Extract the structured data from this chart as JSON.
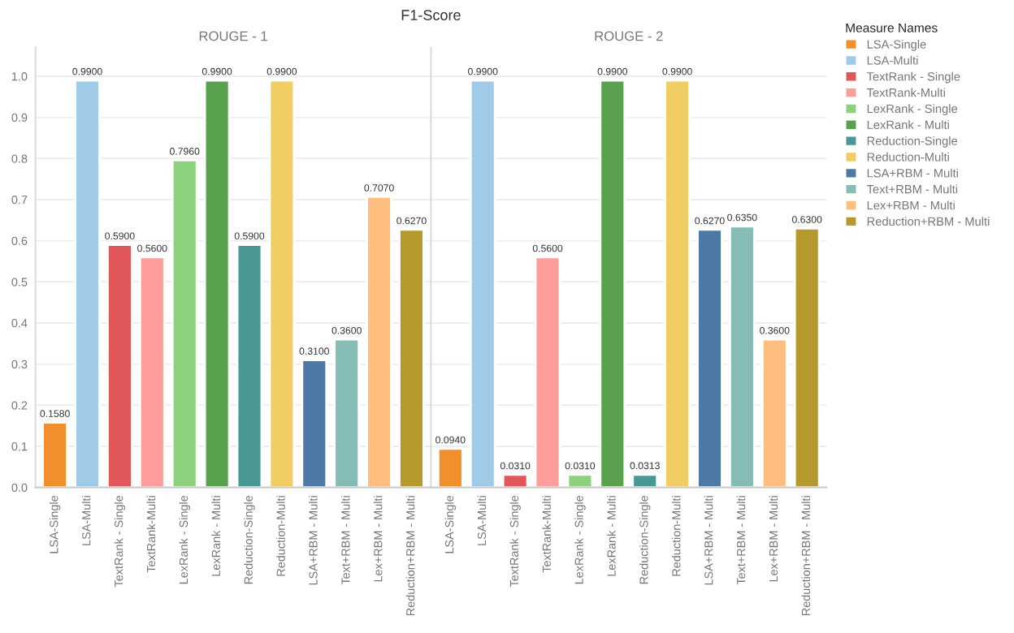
{
  "chart_data": [
    {
      "type": "bar",
      "title": "F1-Score",
      "subtitle": "ROUGE - 1",
      "categories": [
        "LSA-Single",
        "LSA-Multi",
        "TextRank - Single",
        "TextRank-Multi",
        "LexRank - Single",
        "LexRank - Multi",
        "Reduction-Single",
        "Reduction-Multi",
        "LSA+RBM - Multi",
        "Text+RBM - Multi",
        "Lex+RBM - Multi",
        "Reduction+RBM - Multi"
      ],
      "series": [
        {
          "color": "#f28e2b",
          "values": [
            0.158,
            null,
            null,
            null,
            null,
            null,
            null,
            null,
            null,
            null,
            null,
            null
          ],
          "value_labels": [
            "0.1580",
            null,
            null,
            null,
            null,
            null,
            null,
            null,
            null,
            null,
            null,
            null
          ]
        },
        {
          "color": "#a0cbe8",
          "values": [
            null,
            0.99,
            null,
            null,
            null,
            null,
            null,
            null,
            null,
            null,
            null,
            null
          ],
          "value_labels": [
            null,
            "0.9900",
            null,
            null,
            null,
            null,
            null,
            null,
            null,
            null,
            null,
            null
          ]
        },
        {
          "color": "#e15759",
          "values": [
            null,
            null,
            0.59,
            null,
            null,
            null,
            null,
            null,
            null,
            null,
            null,
            null
          ],
          "value_labels": [
            null,
            null,
            "0.5900",
            null,
            null,
            null,
            null,
            null,
            null,
            null,
            null,
            null
          ]
        },
        {
          "color": "#ff9d9a",
          "values": [
            null,
            null,
            null,
            0.56,
            null,
            null,
            null,
            null,
            null,
            null,
            null,
            null
          ],
          "value_labels": [
            null,
            null,
            null,
            "0.5600",
            null,
            null,
            null,
            null,
            null,
            null,
            null,
            null
          ]
        },
        {
          "color": "#8cd17d",
          "values": [
            null,
            null,
            null,
            null,
            0.796,
            null,
            null,
            null,
            null,
            null,
            null,
            null
          ],
          "value_labels": [
            null,
            null,
            null,
            null,
            "0.7960",
            null,
            null,
            null,
            null,
            null,
            null,
            null
          ]
        },
        {
          "color": "#59a14f",
          "values": [
            null,
            null,
            null,
            null,
            null,
            0.99,
            null,
            null,
            null,
            null,
            null,
            null
          ],
          "value_labels": [
            null,
            null,
            null,
            null,
            null,
            "0.9900",
            null,
            null,
            null,
            null,
            null,
            null
          ]
        },
        {
          "color": "#499894",
          "values": [
            null,
            null,
            null,
            null,
            null,
            null,
            0.59,
            null,
            null,
            null,
            null,
            null
          ],
          "value_labels": [
            null,
            null,
            null,
            null,
            null,
            null,
            "0.5900",
            null,
            null,
            null,
            null,
            null
          ]
        },
        {
          "color": "#f1ce63",
          "values": [
            null,
            null,
            null,
            null,
            null,
            null,
            null,
            0.99,
            null,
            null,
            null,
            null
          ],
          "value_labels": [
            null,
            null,
            null,
            null,
            null,
            null,
            null,
            "0.9900",
            null,
            null,
            null,
            null
          ]
        },
        {
          "color": "#4e79a7",
          "values": [
            null,
            null,
            null,
            null,
            null,
            null,
            null,
            null,
            0.31,
            null,
            null,
            null
          ],
          "value_labels": [
            null,
            null,
            null,
            null,
            null,
            null,
            null,
            null,
            "0.3100",
            null,
            null,
            null
          ]
        },
        {
          "color": "#86bcb6",
          "values": [
            null,
            null,
            null,
            null,
            null,
            null,
            null,
            null,
            null,
            0.36,
            null,
            null
          ],
          "value_labels": [
            null,
            null,
            null,
            null,
            null,
            null,
            null,
            null,
            null,
            "0.3600",
            null,
            null
          ]
        },
        {
          "color": "#ffbe7d",
          "values": [
            null,
            null,
            null,
            null,
            null,
            null,
            null,
            null,
            null,
            null,
            0.707,
            null
          ],
          "value_labels": [
            null,
            null,
            null,
            null,
            null,
            null,
            null,
            null,
            null,
            null,
            "0.7070",
            null
          ]
        },
        {
          "color": "#b6992d",
          "values": [
            null,
            null,
            null,
            null,
            null,
            null,
            null,
            null,
            null,
            null,
            null,
            0.627
          ],
          "value_labels": [
            null,
            null,
            null,
            null,
            null,
            null,
            null,
            null,
            null,
            null,
            null,
            "0.6270"
          ]
        }
      ],
      "ylim": [
        0,
        1.07
      ],
      "yticks": [
        {
          "value": 0,
          "label": "0.0"
        },
        0.1,
        0.2,
        0.3,
        0.4,
        0.5,
        0.6,
        0.7,
        0.8,
        0.9,
        {
          "value": 1,
          "label": "1.0"
        }
      ],
      "grid": "y"
    },
    {
      "type": "bar",
      "subtitle": "ROUGE - 2",
      "categories": [
        "LSA-Single",
        "LSA-Multi",
        "TextRank - Single",
        "TextRank-Multi",
        "LexRank - Single",
        "LexRank - Multi",
        "Reduction-Single",
        "Reduction-Multi",
        "LSA+RBM - Multi",
        "Text+RBM - Multi",
        "Lex+RBM - Multi",
        "Reduction+RBM - Multi"
      ],
      "series": [
        {
          "name": "LSA-Single",
          "color": "#f28e2b",
          "values": [
            0.094,
            null,
            null,
            null,
            null,
            null,
            null,
            null,
            null,
            null,
            null,
            null
          ],
          "value_labels": [
            "0.0940",
            null,
            null,
            null,
            null,
            null,
            null,
            null,
            null,
            null,
            null,
            null
          ]
        },
        {
          "name": "LSA-Multi",
          "color": "#a0cbe8",
          "values": [
            null,
            0.99,
            null,
            null,
            null,
            null,
            null,
            null,
            null,
            null,
            null,
            null
          ],
          "value_labels": [
            null,
            "0.9900",
            null,
            null,
            null,
            null,
            null,
            null,
            null,
            null,
            null,
            null
          ]
        },
        {
          "name": "TextRank - Single",
          "color": "#e15759",
          "values": [
            null,
            null,
            0.031,
            null,
            null,
            null,
            null,
            null,
            null,
            null,
            null,
            null
          ],
          "value_labels": [
            null,
            null,
            "0.0310",
            null,
            null,
            null,
            null,
            null,
            null,
            null,
            null,
            null
          ]
        },
        {
          "name": "TextRank-Multi",
          "color": "#ff9d9a",
          "values": [
            null,
            null,
            null,
            0.56,
            null,
            null,
            null,
            null,
            null,
            null,
            null,
            null
          ],
          "value_labels": [
            null,
            null,
            null,
            "0.5600",
            null,
            null,
            null,
            null,
            null,
            null,
            null,
            null
          ]
        },
        {
          "name": "LexRank - Single",
          "color": "#8cd17d",
          "values": [
            null,
            null,
            null,
            null,
            0.031,
            null,
            null,
            null,
            null,
            null,
            null,
            null
          ],
          "value_labels": [
            null,
            null,
            null,
            null,
            "0.0310",
            null,
            null,
            null,
            null,
            null,
            null,
            null
          ]
        },
        {
          "name": "LexRank - Multi",
          "color": "#59a14f",
          "values": [
            null,
            null,
            null,
            null,
            null,
            0.99,
            null,
            null,
            null,
            null,
            null,
            null
          ],
          "value_labels": [
            null,
            null,
            null,
            null,
            null,
            "0.9900",
            null,
            null,
            null,
            null,
            null,
            null
          ]
        },
        {
          "name": "Reduction-Single",
          "color": "#499894",
          "values": [
            null,
            null,
            null,
            null,
            null,
            null,
            0.0313,
            null,
            null,
            null,
            null,
            null
          ],
          "value_labels": [
            null,
            null,
            null,
            null,
            null,
            null,
            "0.0313",
            null,
            null,
            null,
            null,
            null
          ]
        },
        {
          "name": "Reduction-Multi",
          "color": "#f1ce63",
          "values": [
            null,
            null,
            null,
            null,
            null,
            null,
            null,
            0.99,
            null,
            null,
            null,
            null
          ],
          "value_labels": [
            null,
            null,
            null,
            null,
            null,
            null,
            null,
            "0.9900",
            null,
            null,
            null,
            null
          ]
        },
        {
          "name": "LSA+RBM - Multi",
          "color": "#4e79a7",
          "values": [
            null,
            null,
            null,
            null,
            null,
            null,
            null,
            null,
            0.627,
            null,
            null,
            null
          ],
          "value_labels": [
            null,
            null,
            null,
            null,
            null,
            null,
            null,
            null,
            "0.6270",
            null,
            null,
            null
          ]
        },
        {
          "name": "Text+RBM - Multi",
          "color": "#86bcb6",
          "values": [
            null,
            null,
            null,
            null,
            null,
            null,
            null,
            null,
            null,
            0.635,
            null,
            null
          ],
          "value_labels": [
            null,
            null,
            null,
            null,
            null,
            null,
            null,
            null,
            null,
            "0.6350",
            null,
            null
          ]
        },
        {
          "name": "Lex+RBM - Multi",
          "color": "#ffbe7d",
          "values": [
            null,
            null,
            null,
            null,
            null,
            null,
            null,
            null,
            null,
            null,
            0.36,
            null
          ],
          "value_labels": [
            null,
            null,
            null,
            null,
            null,
            null,
            null,
            null,
            null,
            null,
            "0.3600",
            null
          ]
        },
        {
          "name": "Reduction+RBM - Multi",
          "color": "#b6992d",
          "values": [
            null,
            null,
            null,
            null,
            null,
            null,
            null,
            null,
            null,
            null,
            null,
            0.63
          ],
          "value_labels": [
            null,
            null,
            null,
            null,
            null,
            null,
            null,
            null,
            null,
            null,
            null,
            "0.6300"
          ]
        }
      ],
      "ylim": [
        0,
        1.07
      ],
      "yticks": [
        0,
        0.1,
        0.2,
        0.3,
        0.4,
        0.5,
        0.6,
        0.7,
        0.8,
        0.9,
        1
      ],
      "tick_labels": "x",
      "grid": "y",
      "legend": "right",
      "legend_title": "Measure Names"
    }
  ]
}
